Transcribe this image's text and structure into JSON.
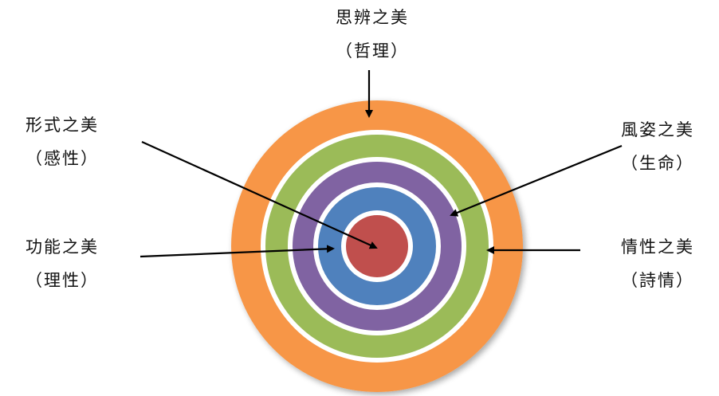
{
  "colors": {
    "orange": "#f79646",
    "green": "#9bbb59",
    "purple": "#8064a2",
    "blue": "#4f81bd",
    "red": "#c0504d",
    "gap": "#ffffff",
    "arrow": "#000000"
  },
  "labels": {
    "top": {
      "title": "思辨之美",
      "sub": "（哲理）"
    },
    "left_upper": {
      "title": "形式之美",
      "sub": "（感性）"
    },
    "left_lower": {
      "title": "功能之美",
      "sub": "（理性）"
    },
    "right_upper": {
      "title": "風姿之美",
      "sub": "（生命）"
    },
    "right_lower": {
      "title": "情性之美",
      "sub": "（詩情）"
    }
  }
}
